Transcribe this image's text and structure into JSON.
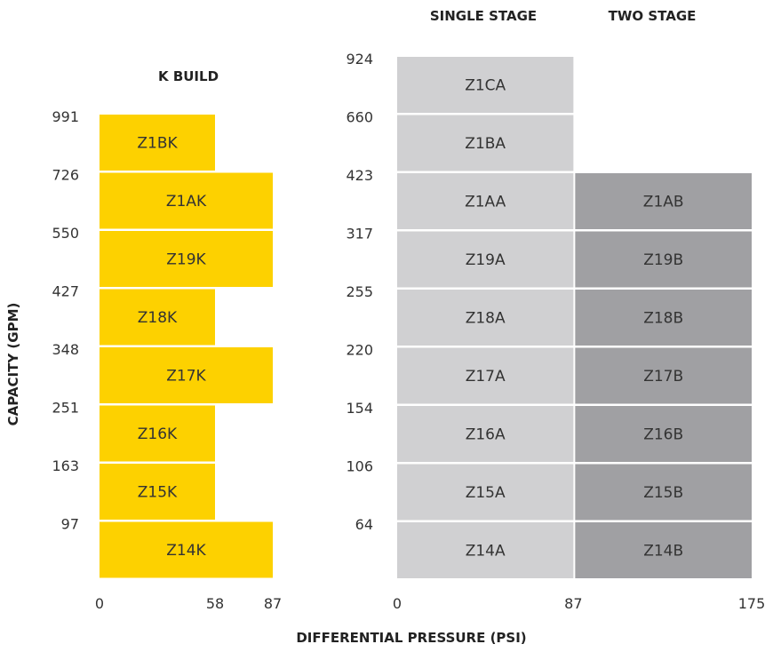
{
  "chart_data": [
    {
      "type": "bar",
      "title": "K BUILD",
      "orientation": "horizontal",
      "ylabel": "CAPACITY (GPM)",
      "x_ticks": [
        "0",
        "58",
        "87"
      ],
      "y_ticks": [
        "991",
        "726",
        "550",
        "427",
        "348",
        "251",
        "163",
        "97"
      ],
      "bars": [
        {
          "label": "Z1BK",
          "max_pressure": 58,
          "capacity_min": 726,
          "capacity_max": 991
        },
        {
          "label": "Z1AK",
          "max_pressure": 87,
          "capacity_min": 550,
          "capacity_max": 726
        },
        {
          "label": "Z19K",
          "max_pressure": 87,
          "capacity_min": 427,
          "capacity_max": 550
        },
        {
          "label": "Z18K",
          "max_pressure": 58,
          "capacity_min": 348,
          "capacity_max": 427
        },
        {
          "label": "Z17K",
          "max_pressure": 87,
          "capacity_min": 251,
          "capacity_max": 348
        },
        {
          "label": "Z16K",
          "max_pressure": 58,
          "capacity_min": 163,
          "capacity_max": 251
        },
        {
          "label": "Z15K",
          "max_pressure": 58,
          "capacity_min": 97,
          "capacity_max": 163
        },
        {
          "label": "Z14K",
          "max_pressure": 87,
          "capacity_min": null,
          "capacity_max": 97
        }
      ],
      "color": "#FDD100"
    },
    {
      "type": "bar",
      "orientation": "horizontal",
      "x_ticks": [
        "0",
        "87",
        "175"
      ],
      "y_ticks": [
        "924",
        "660",
        "423",
        "317",
        "255",
        "220",
        "154",
        "106",
        "64"
      ],
      "column_headers": [
        "SINGLE STAGE",
        "TWO STAGE"
      ],
      "xlabel": "DIFFERENTIAL PRESSURE (PSI)",
      "series": [
        {
          "name": "SINGLE STAGE",
          "pressure_range": [
            0,
            87
          ],
          "color": "#D0D0D2",
          "bars": [
            {
              "label": "Z1CA",
              "capacity_min": 660,
              "capacity_max": 924
            },
            {
              "label": "Z1BA",
              "capacity_min": 423,
              "capacity_max": 660
            },
            {
              "label": "Z1AA",
              "capacity_min": 317,
              "capacity_max": 423
            },
            {
              "label": "Z19A",
              "capacity_min": 255,
              "capacity_max": 317
            },
            {
              "label": "Z18A",
              "capacity_min": 220,
              "capacity_max": 255
            },
            {
              "label": "Z17A",
              "capacity_min": 154,
              "capacity_max": 220
            },
            {
              "label": "Z16A",
              "capacity_min": 106,
              "capacity_max": 154
            },
            {
              "label": "Z15A",
              "capacity_min": 64,
              "capacity_max": 106
            },
            {
              "label": "Z14A",
              "capacity_min": null,
              "capacity_max": 64
            }
          ]
        },
        {
          "name": "TWO STAGE",
          "pressure_range": [
            87,
            175
          ],
          "color": "#A0A0A3",
          "bars": [
            {
              "label": "Z1AB",
              "capacity_min": 317,
              "capacity_max": 423
            },
            {
              "label": "Z19B",
              "capacity_min": 255,
              "capacity_max": 317
            },
            {
              "label": "Z18B",
              "capacity_min": 220,
              "capacity_max": 255
            },
            {
              "label": "Z17B",
              "capacity_min": 154,
              "capacity_max": 220
            },
            {
              "label": "Z16B",
              "capacity_min": 106,
              "capacity_max": 154
            },
            {
              "label": "Z15B",
              "capacity_min": 64,
              "capacity_max": 106
            },
            {
              "label": "Z14B",
              "capacity_min": null,
              "capacity_max": 64
            }
          ]
        }
      ]
    }
  ]
}
